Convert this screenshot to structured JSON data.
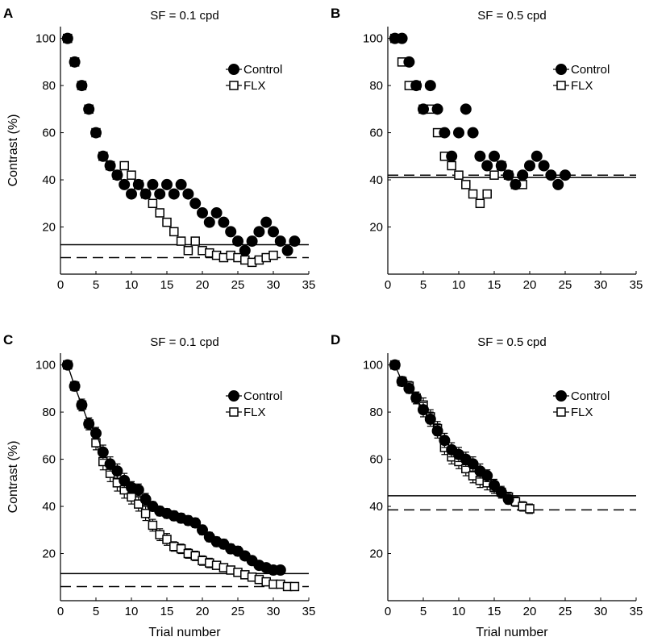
{
  "figure": {
    "xlabel": "Trial number",
    "ylabel": "Contrast (%)",
    "legend": {
      "control": "Control",
      "flx": "FLX"
    },
    "colors": {
      "control_fill": "#000000",
      "flx_fill": "#ffffff",
      "stroke": "#000000"
    }
  },
  "chart_data": [
    {
      "id": "A",
      "letter": "A",
      "type": "scatter",
      "title": "SF = 0.1 cpd",
      "xlabel": "",
      "ylabel": "Contrast (%)",
      "xlim": [
        0,
        35
      ],
      "ylim": [
        0,
        105
      ],
      "xticks": [
        0,
        5,
        10,
        15,
        20,
        25,
        30,
        35
      ],
      "yticks": [
        20,
        40,
        60,
        80,
        100
      ],
      "legend_position": "top-right",
      "threshold_control": 12.5,
      "threshold_flx": 7,
      "series": [
        {
          "name": "Control",
          "marker": "filled-circle",
          "x": [
            1,
            2,
            3,
            4,
            5,
            6,
            7,
            8,
            9,
            10,
            11,
            12,
            13,
            14,
            15,
            16,
            17,
            18,
            19,
            20,
            21,
            22,
            23,
            24,
            25,
            26,
            27,
            28,
            29,
            30,
            31,
            32,
            33
          ],
          "y": [
            100,
            90,
            80,
            70,
            60,
            50,
            46,
            42,
            38,
            34,
            38,
            34,
            38,
            34,
            38,
            34,
            38,
            34,
            30,
            26,
            22,
            26,
            22,
            18,
            14,
            10,
            14,
            18,
            22,
            18,
            14,
            10,
            14
          ]
        },
        {
          "name": "FLX",
          "marker": "open-square",
          "x": [
            1,
            2,
            3,
            4,
            5,
            6,
            7,
            8,
            9,
            10,
            11,
            12,
            13,
            14,
            15,
            16,
            17,
            18,
            19,
            20,
            21,
            22,
            23,
            24,
            25,
            26,
            27,
            28,
            29,
            30
          ],
          "y": [
            100,
            90,
            80,
            70,
            60,
            50,
            46,
            42,
            46,
            42,
            38,
            34,
            30,
            26,
            22,
            18,
            14,
            10,
            14,
            10,
            9,
            8,
            7,
            8,
            7,
            6,
            5,
            6,
            7,
            8
          ]
        }
      ]
    },
    {
      "id": "B",
      "letter": "B",
      "type": "scatter",
      "title": "SF = 0.5 cpd",
      "xlabel": "",
      "ylabel": "",
      "xlim": [
        0,
        35
      ],
      "ylim": [
        0,
        105
      ],
      "xticks": [
        0,
        5,
        10,
        15,
        20,
        25,
        30,
        35
      ],
      "yticks": [
        20,
        40,
        60,
        80,
        100
      ],
      "legend_position": "top-right",
      "threshold_control": 41,
      "threshold_flx": 42,
      "series": [
        {
          "name": "Control",
          "marker": "filled-circle",
          "x": [
            1,
            2,
            3,
            4,
            5,
            6,
            7,
            8,
            9,
            10,
            11,
            12,
            13,
            14,
            15,
            16,
            17,
            18,
            19,
            20,
            21,
            22,
            23,
            24,
            25
          ],
          "y": [
            100,
            100,
            90,
            80,
            70,
            80,
            70,
            60,
            50,
            60,
            70,
            60,
            50,
            46,
            50,
            46,
            42,
            38,
            42,
            46,
            50,
            46,
            42,
            38,
            42
          ]
        },
        {
          "name": "FLX",
          "marker": "open-square",
          "x": [
            1,
            2,
            3,
            4,
            5,
            6,
            7,
            8,
            9,
            10,
            11,
            12,
            13,
            14,
            15,
            16,
            17,
            18,
            19
          ],
          "y": [
            100,
            90,
            80,
            80,
            70,
            70,
            60,
            50,
            46,
            42,
            38,
            34,
            30,
            34,
            42,
            46,
            42,
            38,
            38
          ]
        }
      ]
    },
    {
      "id": "C",
      "letter": "C",
      "type": "line",
      "title": "SF = 0.1 cpd",
      "xlabel": "Trial number",
      "ylabel": "Contrast (%)",
      "xlim": [
        0,
        35
      ],
      "ylim": [
        0,
        105
      ],
      "xticks": [
        0,
        5,
        10,
        15,
        20,
        25,
        30,
        35
      ],
      "yticks": [
        20,
        40,
        60,
        80,
        100
      ],
      "legend_position": "top-right",
      "threshold_control": 11.5,
      "threshold_flx": 6,
      "series": [
        {
          "name": "Control",
          "marker": "filled-circle",
          "x": [
            1,
            2,
            3,
            4,
            5,
            6,
            7,
            8,
            9,
            10,
            11,
            12,
            13,
            14,
            15,
            16,
            17,
            18,
            19,
            20,
            21,
            22,
            23,
            24,
            25,
            26,
            27,
            28,
            29,
            30,
            31
          ],
          "y": [
            100,
            91,
            83,
            75,
            71,
            63,
            58,
            55,
            51,
            48,
            47,
            43,
            40,
            38,
            37,
            36,
            35,
            34,
            33,
            30,
            27,
            25,
            24,
            22,
            21,
            19,
            17,
            15,
            14,
            13,
            13
          ],
          "err": [
            0.5,
            2,
            2,
            2.5,
            2.5,
            3,
            3,
            3,
            3,
            2.5,
            2.5,
            2.5,
            2,
            2,
            2,
            2,
            2,
            2,
            2,
            2,
            2,
            2,
            2,
            2,
            2,
            1.5,
            1.5,
            1.5,
            1.5,
            1.5,
            1.5
          ]
        },
        {
          "name": "FLX",
          "marker": "open-square",
          "x": [
            1,
            2,
            3,
            4,
            5,
            6,
            7,
            8,
            9,
            10,
            11,
            12,
            13,
            14,
            15,
            16,
            17,
            18,
            19,
            20,
            21,
            22,
            23,
            24,
            25,
            26,
            27,
            28,
            29,
            30,
            31,
            32,
            33
          ],
          "y": [
            100,
            91,
            83,
            75,
            67,
            59,
            54,
            50,
            47,
            44,
            41,
            37,
            32,
            28,
            26,
            23,
            22,
            20,
            19,
            17,
            16,
            15,
            14,
            13,
            12,
            11,
            10,
            9,
            8,
            7,
            7,
            6,
            6
          ],
          "err": [
            0.5,
            2,
            2.5,
            2.5,
            3,
            3.5,
            3.5,
            3.5,
            3.5,
            3,
            3,
            3,
            2.5,
            2.5,
            2.5,
            2,
            2,
            2,
            2,
            2,
            2,
            1.5,
            1.5,
            1.5,
            1.5,
            1.5,
            1.5,
            1.5,
            1.5,
            1.5,
            1.5,
            1.5,
            1.5
          ]
        }
      ]
    },
    {
      "id": "D",
      "letter": "D",
      "type": "line",
      "title": "SF = 0.5 cpd",
      "xlabel": "Trial number",
      "ylabel": "",
      "xlim": [
        0,
        35
      ],
      "ylim": [
        0,
        105
      ],
      "xticks": [
        0,
        5,
        10,
        15,
        20,
        25,
        30,
        35
      ],
      "yticks": [
        20,
        40,
        60,
        80,
        100
      ],
      "legend_position": "top-right",
      "threshold_control": 44.5,
      "threshold_flx": 38.5,
      "series": [
        {
          "name": "Control",
          "marker": "filled-circle",
          "x": [
            1,
            2,
            3,
            4,
            5,
            6,
            7,
            8,
            9,
            10,
            11,
            12,
            13,
            14,
            15,
            16,
            17
          ],
          "y": [
            100,
            93,
            90,
            86,
            81,
            77,
            72,
            68,
            64,
            62,
            60,
            58,
            55,
            53,
            49,
            46,
            43
          ],
          "err": [
            0.5,
            2,
            2,
            2.5,
            3,
            3,
            3,
            3,
            3,
            3,
            3,
            3,
            3,
            2.5,
            2.5,
            2,
            2
          ]
        },
        {
          "name": "FLX",
          "marker": "open-square",
          "x": [
            1,
            2,
            3,
            4,
            5,
            6,
            7,
            8,
            9,
            10,
            11,
            12,
            13,
            14,
            15,
            16,
            17,
            18,
            19,
            20
          ],
          "y": [
            100,
            93,
            91,
            86,
            83,
            78,
            73,
            65,
            61,
            59,
            56,
            53,
            51,
            50,
            48,
            46,
            44,
            42,
            40,
            39
          ],
          "err": [
            0.5,
            2,
            2,
            2.5,
            3,
            3,
            3,
            3,
            3,
            3,
            3,
            3,
            3,
            3,
            2.5,
            2.5,
            2,
            2,
            2,
            2
          ]
        }
      ]
    }
  ]
}
